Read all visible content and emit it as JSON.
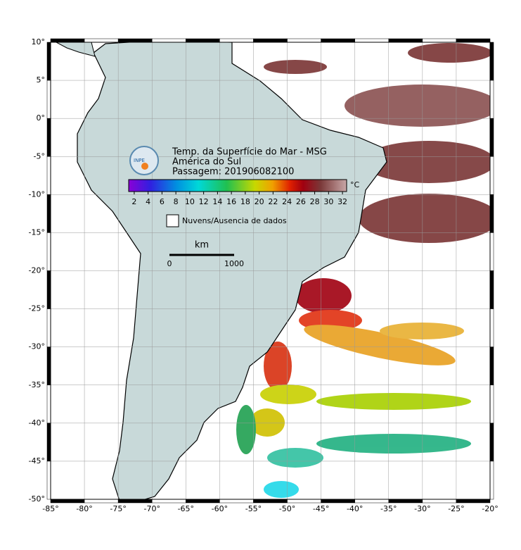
{
  "map": {
    "xlim": [
      -85,
      -20
    ],
    "ylim": [
      -50,
      10
    ],
    "xticks": [
      {
        "value": -85,
        "label": "-85°"
      },
      {
        "value": -80,
        "label": "-80°"
      },
      {
        "value": -75,
        "label": "-75°"
      },
      {
        "value": -70,
        "label": "-70°"
      },
      {
        "value": -65,
        "label": "-65°"
      },
      {
        "value": -60,
        "label": "-60°"
      },
      {
        "value": -55,
        "label": "-55°"
      },
      {
        "value": -50,
        "label": "-50°"
      },
      {
        "value": -45,
        "label": "-45°"
      },
      {
        "value": -40,
        "label": "-40°"
      },
      {
        "value": -35,
        "label": "-35°"
      },
      {
        "value": -30,
        "label": "-30°"
      },
      {
        "value": -25,
        "label": "-25°"
      },
      {
        "value": -20,
        "label": "-20°"
      }
    ],
    "yticks": [
      {
        "value": 10,
        "label": "10°"
      },
      {
        "value": 5,
        "label": "5°"
      },
      {
        "value": 0,
        "label": "0°"
      },
      {
        "value": -5,
        "label": "-5°"
      },
      {
        "value": -10,
        "label": "-10°"
      },
      {
        "value": -15,
        "label": "-15°"
      },
      {
        "value": -20,
        "label": "-20°"
      },
      {
        "value": -25,
        "label": "-25°"
      },
      {
        "value": -30,
        "label": "-30°"
      },
      {
        "value": -35,
        "label": "-35°"
      },
      {
        "value": -40,
        "label": "-40°"
      },
      {
        "value": -45,
        "label": "-45°"
      },
      {
        "value": -50,
        "label": "-50°"
      }
    ]
  },
  "legend": {
    "title_lines": [
      "Temp. da Superfície do Mar - MSG",
      "América do Sul",
      "Passagem: 201906082100"
    ],
    "logo": "INPE",
    "colorbar": {
      "lim": [
        1.2,
        32.6
      ],
      "ticks": [
        2,
        4,
        6,
        8,
        10,
        12,
        14,
        16,
        18,
        20,
        22,
        24,
        26,
        28,
        30,
        32
      ],
      "unit": "°C"
    },
    "no_data": "Nuvens/Ausencia de dados",
    "scale": {
      "unit": "km",
      "labels": [
        "0",
        "1000"
      ]
    }
  }
}
